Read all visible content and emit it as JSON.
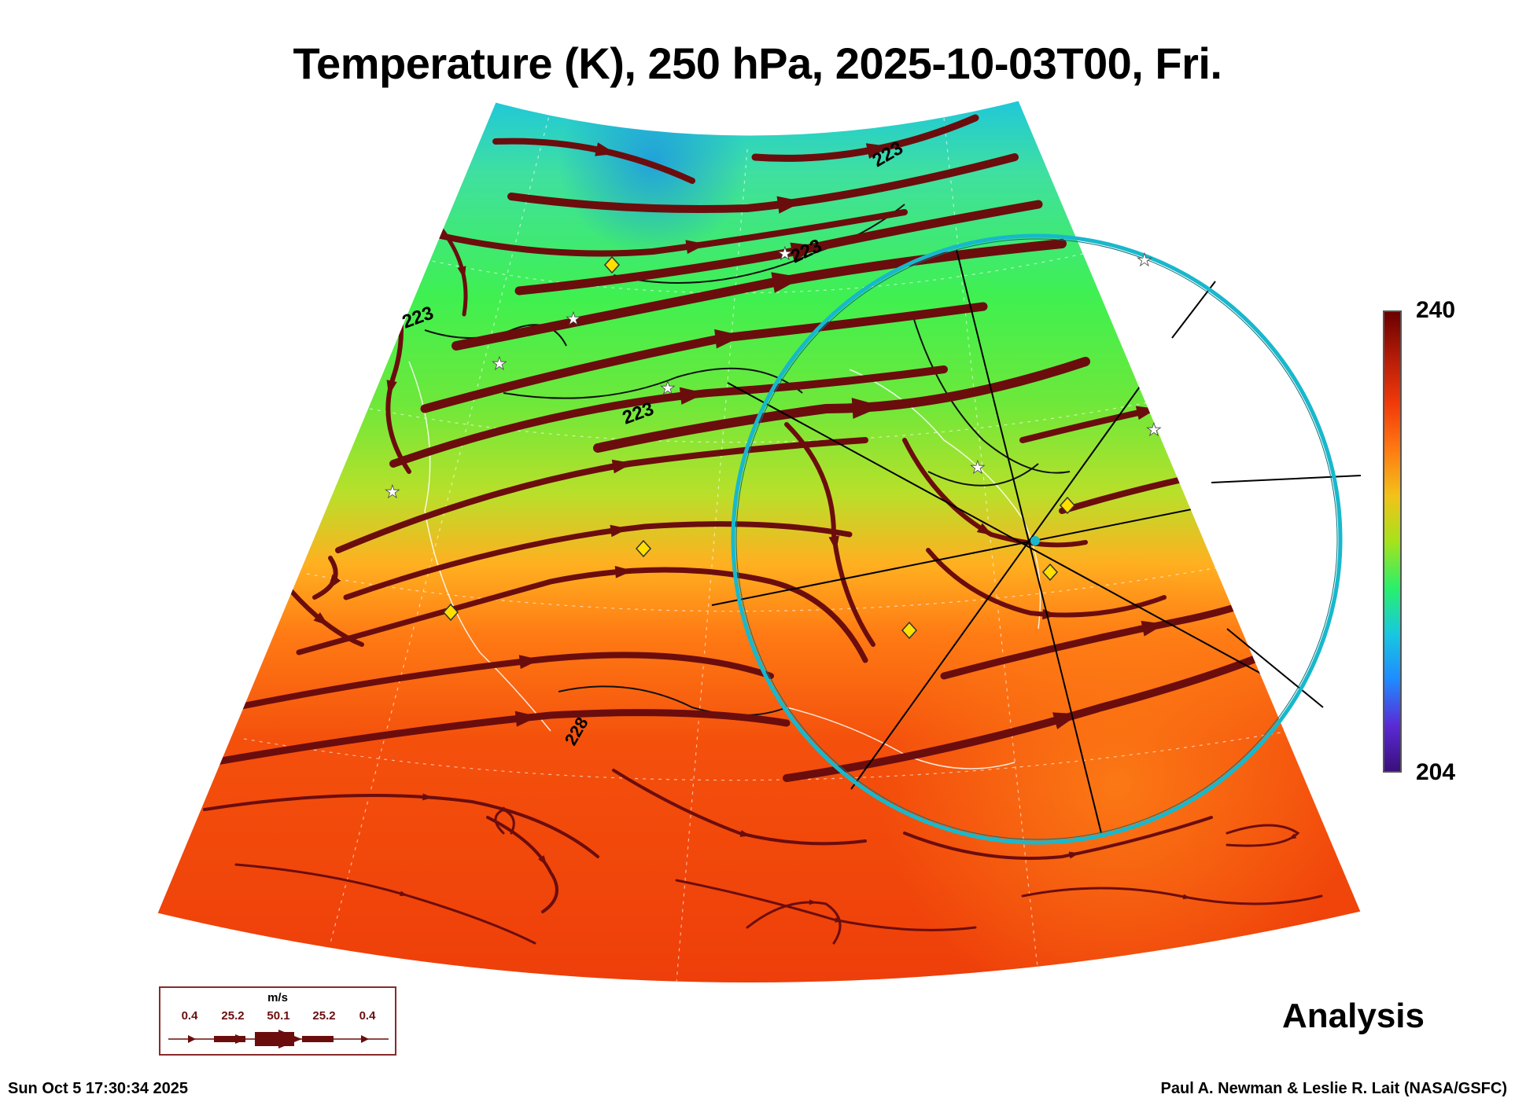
{
  "title": "Temperature (K), 250 hPa, 2025-10-03T00, Fri.",
  "colorbar": {
    "max_label": "240",
    "min_label": "204",
    "colors": [
      "#3b0f7a",
      "#5a2bd6",
      "#1f8bff",
      "#18c8e0",
      "#2af06a",
      "#a6e21c",
      "#f2c21a",
      "#ff7a12",
      "#f23a0a",
      "#b41c08",
      "#6a0000"
    ]
  },
  "contour_labels": {
    "nw": "223",
    "north": "223",
    "mid": "223",
    "east": "223",
    "southwest": "228"
  },
  "wind_legend": {
    "unit": "m/s",
    "values": [
      "0.4",
      "25.2",
      "50.1",
      "25.2",
      "0.4"
    ]
  },
  "analysis_label": "Analysis",
  "timestamp": "Sun Oct  5 17:30:34 2025",
  "credit": "Paul A. Newman & Leslie R. Lait (NASA/GSFC)",
  "colors": {
    "streamline": "#6b0d0d",
    "ring": "#18b8cc",
    "marker_fill": "#ffe000"
  },
  "icons": [
    "star-icon",
    "diamond-icon"
  ]
}
